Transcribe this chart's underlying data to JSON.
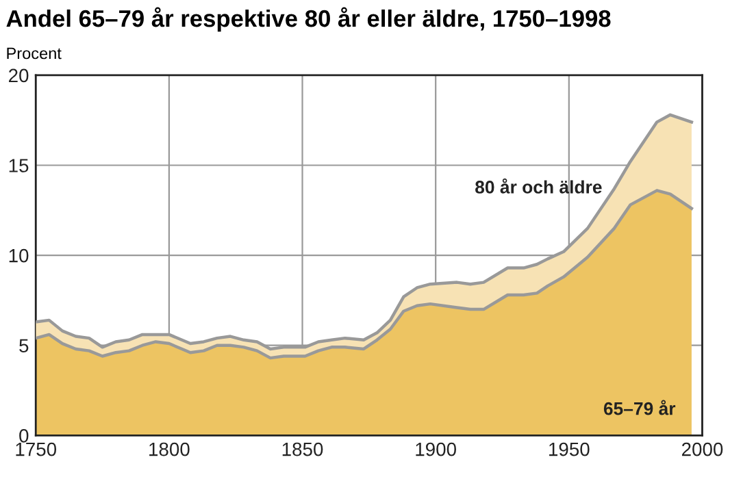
{
  "chart_data": {
    "type": "area",
    "title": "Andel 65–79 år respektive 80 år eller äldre, 1750–1998",
    "ylabel": "Procent",
    "stacked": true,
    "grid": true,
    "legend": false,
    "x": [
      1750,
      1755,
      1760,
      1765,
      1770,
      1775,
      1780,
      1785,
      1790,
      1795,
      1800,
      1808,
      1813,
      1818,
      1823,
      1828,
      1833,
      1838,
      1843,
      1851,
      1856,
      1861,
      1866,
      1873,
      1878,
      1883,
      1888,
      1893,
      1898,
      1908,
      1913,
      1918,
      1927,
      1933,
      1938,
      1942,
      1948,
      1957,
      1967,
      1973,
      1983,
      1988,
      1996
    ],
    "series": [
      {
        "name": "65–79 år",
        "color": "#edc462",
        "values": [
          5.4,
          5.6,
          5.1,
          4.8,
          4.7,
          4.4,
          4.6,
          4.7,
          5.0,
          5.2,
          5.1,
          4.6,
          4.7,
          5.0,
          5.0,
          4.9,
          4.7,
          4.3,
          4.4,
          4.4,
          4.7,
          4.9,
          4.9,
          4.8,
          5.3,
          5.9,
          6.9,
          7.2,
          7.3,
          7.1,
          7.0,
          7.0,
          7.8,
          7.8,
          7.9,
          8.3,
          8.8,
          9.9,
          11.5,
          12.8,
          13.6,
          13.4,
          12.6
        ]
      },
      {
        "name": "80 år och äldre",
        "color": "#f7e2b4",
        "values": [
          0.9,
          0.8,
          0.7,
          0.7,
          0.7,
          0.5,
          0.6,
          0.6,
          0.6,
          0.4,
          0.5,
          0.5,
          0.5,
          0.4,
          0.5,
          0.4,
          0.5,
          0.5,
          0.5,
          0.5,
          0.5,
          0.4,
          0.5,
          0.5,
          0.4,
          0.5,
          0.8,
          1.0,
          1.1,
          1.4,
          1.4,
          1.5,
          1.5,
          1.5,
          1.6,
          1.5,
          1.4,
          1.6,
          2.2,
          2.4,
          3.8,
          4.4,
          4.8
        ]
      }
    ],
    "xlim": [
      1750,
      2000
    ],
    "xticks": [
      1750,
      1800,
      1850,
      1900,
      1950,
      2000
    ],
    "ylim": [
      0,
      20
    ],
    "yticks": [
      0,
      5,
      10,
      15,
      20
    ]
  }
}
